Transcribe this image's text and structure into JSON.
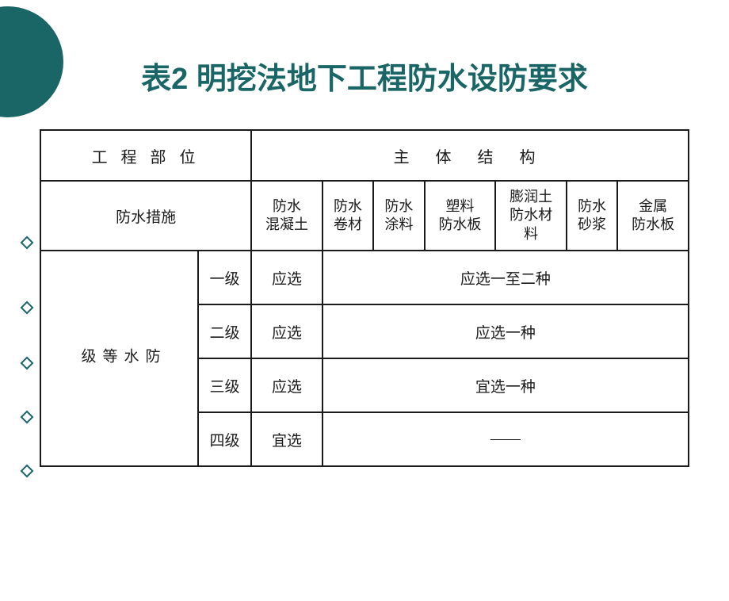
{
  "title": "表2  明挖法地下工程防水设防要求",
  "colors": {
    "accent": "#1a6666",
    "border": "#1a1a1a",
    "background": "#ffffff",
    "text": "#1a1a1a"
  },
  "typography": {
    "title_fontsize": 38,
    "body_fontsize": 19,
    "header_fontsize": 20
  },
  "table": {
    "header": {
      "left": "工 程 部 位",
      "right": "主   体   结   构"
    },
    "measures_label": "防水措施",
    "measure_columns": [
      "防水\n混凝土",
      "防水\n卷材",
      "防水\n涂料",
      "塑料\n防水板",
      "膨润土\n防水材\n料",
      "防水\n砂浆",
      "金属\n防水板"
    ],
    "level_group_label": "防\n水\n等\n级",
    "levels": [
      {
        "name": "一级",
        "col1": "应选",
        "col_rest": "应选一至二种"
      },
      {
        "name": "二级",
        "col1": "应选",
        "col_rest": "应选一种"
      },
      {
        "name": "三级",
        "col1": "应选",
        "col_rest": "宜选一种"
      },
      {
        "name": "四级",
        "col1": "宜选",
        "col_rest": "——"
      }
    ]
  }
}
